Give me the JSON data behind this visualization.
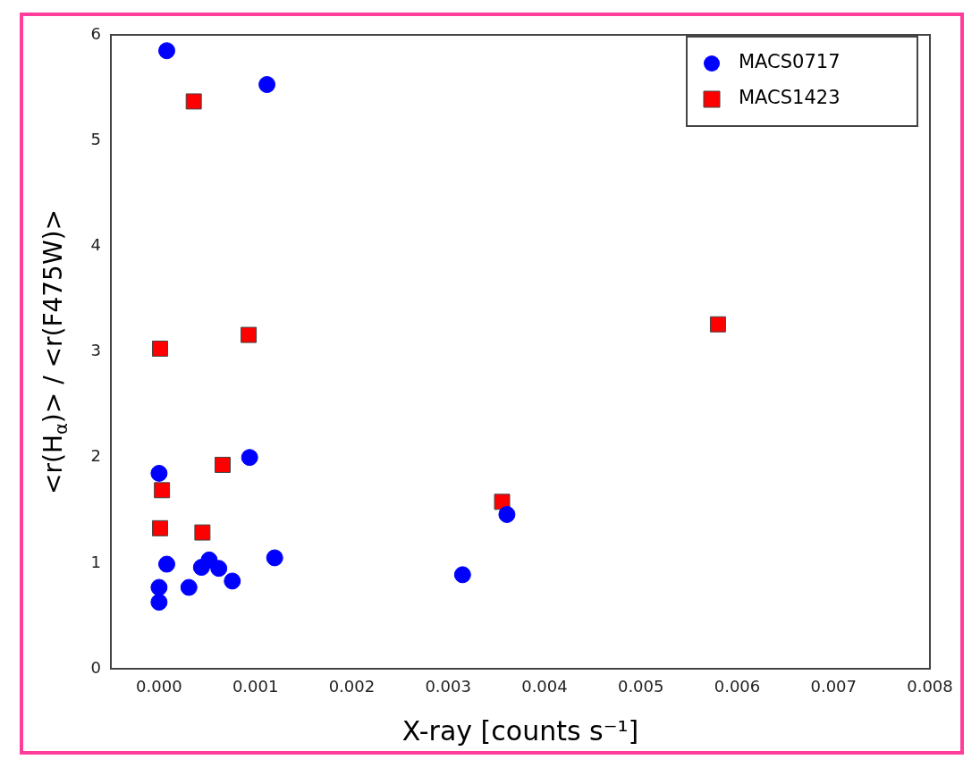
{
  "chart_data": {
    "type": "scatter",
    "xlabel": "X-ray [counts s⁻¹]",
    "ylabel": "<r(H$_{α}$)> / <r(F475W)>",
    "xlim": [
      -0.0005,
      0.008
    ],
    "xticks": [
      {
        "value": 0,
        "label": "0.000"
      },
      {
        "value": 0.001,
        "label": "0.001"
      },
      {
        "value": 0.002,
        "label": "0.002"
      },
      {
        "value": 0.003,
        "label": "0.003"
      },
      {
        "value": 0.004,
        "label": "0.004"
      },
      {
        "value": 0.005,
        "label": "0.005"
      },
      {
        "value": 0.006,
        "label": "0.006"
      },
      {
        "value": 0.007,
        "label": "0.007"
      },
      {
        "value": 0.008,
        "label": "0.008"
      }
    ],
    "ylim": [
      0,
      6
    ],
    "yticks": [
      0,
      1,
      2,
      3,
      4,
      5,
      6
    ],
    "grid": false,
    "legend": "top right",
    "series": [
      {
        "name": "MACS0717",
        "color": "#0000ff",
        "marker": "circle",
        "x": [
          8e-05,
          0.00112,
          0,
          0.00094,
          0.00361,
          0.00315,
          8e-05,
          0,
          0,
          0.00031,
          0.00044,
          0.00052,
          0.00062,
          0.00076,
          0.0012
        ],
        "values": [
          5.85,
          5.53,
          1.85,
          2.0,
          1.46,
          0.89,
          0.99,
          0.77,
          0.63,
          0.77,
          0.96,
          1.03,
          0.95,
          0.83,
          1.05
        ]
      },
      {
        "name": "MACS1423",
        "color": "#ff0000",
        "marker": "square",
        "x": [
          0.00036,
          1e-05,
          0.00093,
          0.0058,
          0.00066,
          3e-05,
          1e-05,
          0.00045,
          0.00356
        ],
        "values": [
          5.37,
          3.03,
          3.16,
          3.26,
          1.93,
          1.69,
          1.33,
          1.29,
          1.58
        ]
      }
    ]
  }
}
